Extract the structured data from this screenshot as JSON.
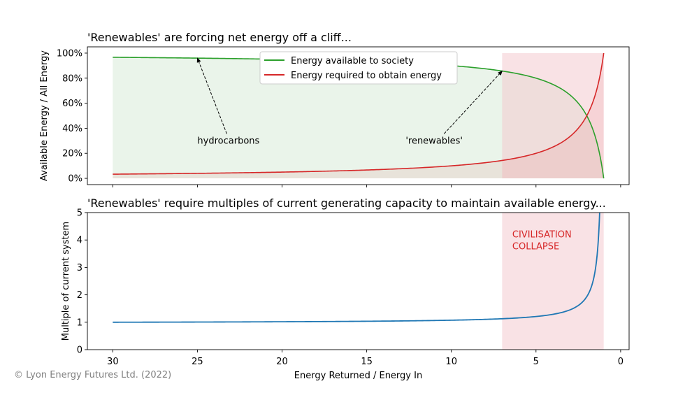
{
  "copyright": "© Lyon Energy Futures Ltd. (2022)",
  "colors": {
    "available": "#2ca02c",
    "required": "#d62728",
    "multiple": "#1f77b4",
    "collapse_zone": "#f4c5cb",
    "collapse_text": "#d62728",
    "available_fill": "#e6f2e6"
  },
  "chart_data": [
    {
      "type": "line",
      "title": "'Renewables' are forcing net energy off a cliff...",
      "xlabel": "",
      "ylabel": "Available Energy / All Energy",
      "xlim": [
        31.5,
        -0.5
      ],
      "ylim": [
        -0.05,
        1.05
      ],
      "x_range": [
        30,
        1
      ],
      "yticks": [
        0,
        0.2,
        0.4,
        0.6,
        0.8,
        1.0
      ],
      "ytick_labels": [
        "0%",
        "20%",
        "40%",
        "60%",
        "80%",
        "100%"
      ],
      "xticks": [
        30,
        25,
        20,
        15,
        10,
        5,
        0
      ],
      "series": [
        {
          "name": "Energy available to society",
          "formula": "1 - 1/x",
          "color_key": "available"
        },
        {
          "name": "Energy required to obtain energy",
          "formula": "1/x",
          "color_key": "required"
        }
      ],
      "shaded_region": {
        "x_from": 7,
        "x_to": 1
      },
      "legend": "upper-center",
      "annotations": [
        {
          "text": "hydrocarbons",
          "text_at": [
            25,
            0.3
          ],
          "arrow_to": [
            25,
            0.96
          ]
        },
        {
          "text": "'renewables'",
          "text_at": [
            12.7,
            0.3
          ],
          "arrow_to": [
            7,
            0.857
          ]
        }
      ]
    },
    {
      "type": "line",
      "title": "'Renewables' require multiples of current generating capacity to maintain available energy...",
      "xlabel": "Energy Returned / Energy In",
      "ylabel": "Multiple of current system",
      "xlim": [
        31.5,
        -0.5
      ],
      "ylim": [
        0,
        5
      ],
      "x_range": [
        30,
        1
      ],
      "yticks": [
        0,
        1,
        2,
        3,
        4,
        5
      ],
      "ytick_labels": [
        "0",
        "1",
        "2",
        "3",
        "4",
        "5"
      ],
      "xticks": [
        30,
        25,
        20,
        15,
        10,
        5,
        0
      ],
      "xtick_labels": [
        "30",
        "25",
        "20",
        "15",
        "10",
        "5",
        "0"
      ],
      "series": [
        {
          "name": "Multiple of current system",
          "formula": "(29/30) / (1 - 1/x)",
          "color_key": "multiple"
        }
      ],
      "shaded_region": {
        "x_from": 7,
        "x_to": 1
      },
      "annotations": [
        {
          "text_lines": [
            "CIVILISATION",
            "COLLAPSE"
          ],
          "text_at": [
            6.4,
            4.2
          ]
        }
      ]
    }
  ]
}
